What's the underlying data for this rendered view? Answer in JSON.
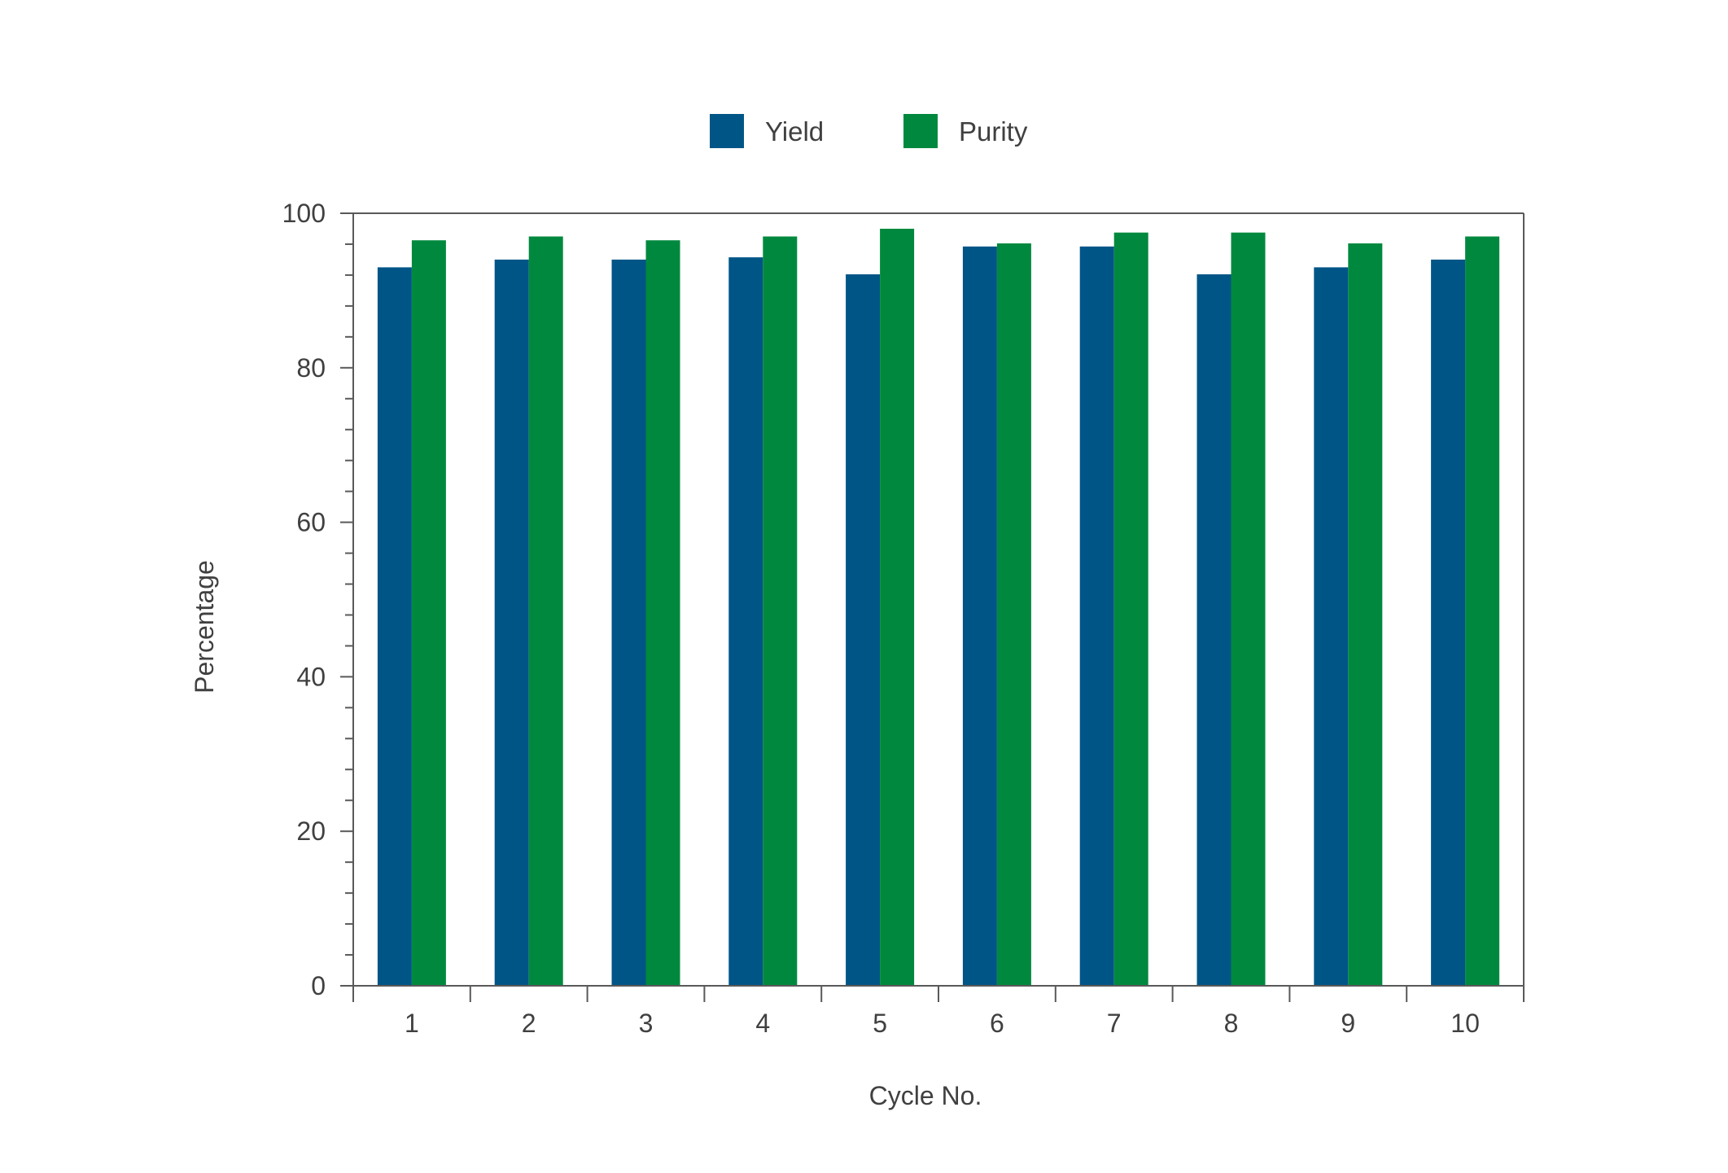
{
  "chart_data": {
    "type": "bar",
    "title": "",
    "xlabel": "Cycle No.",
    "ylabel": "Percentage",
    "categories": [
      "1",
      "2",
      "3",
      "4",
      "5",
      "6",
      "7",
      "8",
      "9",
      "10"
    ],
    "series": [
      {
        "name": "Yield",
        "color": "#005587",
        "values": [
          93.0,
          94.0,
          94.0,
          94.3,
          92.1,
          95.7,
          95.7,
          92.1,
          93.0,
          94.0
        ]
      },
      {
        "name": "Purity",
        "color": "#00893E",
        "values": [
          96.5,
          97.0,
          96.5,
          97.0,
          98.0,
          96.1,
          97.5,
          97.5,
          96.1,
          97.0
        ]
      }
    ],
    "ylim": [
      0,
      100
    ],
    "yticks": [
      0,
      20,
      40,
      60,
      80,
      100
    ],
    "y_minor_step": 4,
    "legend_position": "top-center",
    "grid": false
  }
}
